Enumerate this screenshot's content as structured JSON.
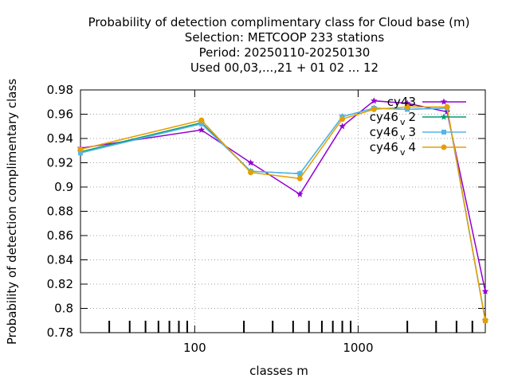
{
  "chart_data": {
    "type": "line",
    "title_lines": [
      "Probability of detection complimentary class  for Cloud base (m)",
      "Selection: METCOOP    233 stations",
      "Period: 20250110-20250130",
      "Used  00,03,...,21  + 01 02 ... 12"
    ],
    "xlabel": "classes m",
    "ylabel": "Probability of detection complimentary class",
    "xscale": "log",
    "xlim": [
      20,
      6000
    ],
    "ylim": [
      0.78,
      0.98
    ],
    "yticks": [
      "0.78",
      "0.8",
      "0.82",
      "0.84",
      "0.86",
      "0.88",
      "0.9",
      "0.92",
      "0.94",
      "0.96",
      "0.98"
    ],
    "xticks": [
      {
        "value": 100,
        "label": "100"
      },
      {
        "value": 1000,
        "label": "1000"
      }
    ],
    "grid": true,
    "legend_position": "top-right",
    "x": [
      20,
      110,
      220,
      440,
      800,
      1250,
      2000,
      3500,
      6000
    ],
    "series": [
      {
        "name_base": "cy43",
        "name_sub": "",
        "name_suffix": "",
        "color": "#9400d3",
        "marker": "star",
        "values": [
          0.932,
          0.947,
          0.92,
          0.894,
          0.95,
          0.971,
          0.969,
          0.962,
          0.814
        ]
      },
      {
        "name_base": "cy46",
        "name_sub": "v",
        "name_suffix": "2",
        "color": "#009e73",
        "marker": "star",
        "values": [
          0.929,
          0.953,
          0.913,
          0.911,
          0.958,
          0.965,
          0.964,
          0.965,
          0.79
        ]
      },
      {
        "name_base": "cy46",
        "name_sub": "v",
        "name_suffix": "3",
        "color": "#56b4e9",
        "marker": "box",
        "values": [
          0.928,
          0.952,
          0.913,
          0.911,
          0.958,
          0.965,
          0.964,
          0.965,
          0.79
        ]
      },
      {
        "name_base": "cy46",
        "name_sub": "v",
        "name_suffix": "4",
        "color": "#e69f00",
        "marker": "circle",
        "values": [
          0.931,
          0.955,
          0.912,
          0.907,
          0.956,
          0.964,
          0.966,
          0.966,
          0.79
        ]
      }
    ]
  }
}
